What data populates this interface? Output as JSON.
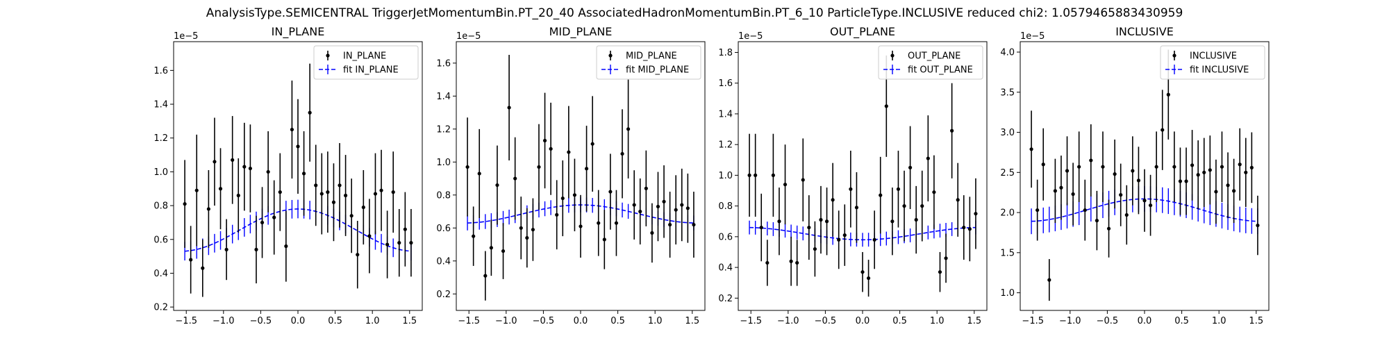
{
  "figure": {
    "suptitle": "AnalysisType.SEMICENTRAL TriggerJetMomentumBin.PT_20_40 AssociatedHadronMomentumBin.PT_6_10 ParticleType.INCLUSIVE reduced chi2: 1.0579465883430959"
  },
  "colors": {
    "data": "#000000",
    "fit": "#0000ff",
    "axes": "#000000"
  },
  "chart_data": [
    {
      "type": "scatter",
      "title": "IN_PLANE",
      "offset_label": "1e−5",
      "xlim": [
        -1.67,
        1.67
      ],
      "ylim": [
        0.18,
        1.77
      ],
      "xticks": [
        -1.5,
        -1.0,
        -0.5,
        0.0,
        0.5,
        1.0,
        1.5
      ],
      "xtick_labels": [
        "−1.5",
        "−1.0",
        "−0.5",
        "0.0",
        "0.5",
        "1.0",
        "1.5"
      ],
      "yticks": [
        0.2,
        0.4,
        0.6,
        0.8,
        1.0,
        1.2,
        1.4,
        1.6
      ],
      "ytick_labels": [
        "0.2",
        "0.4",
        "0.6",
        "0.8",
        "1.0",
        "1.2",
        "1.4",
        "1.6"
      ],
      "legend": {
        "position": "top-right",
        "entries": [
          "IN_PLANE",
          "fit IN_PLANE"
        ]
      },
      "x": [
        -1.52,
        -1.44,
        -1.36,
        -1.28,
        -1.2,
        -1.12,
        -1.04,
        -0.96,
        -0.88,
        -0.8,
        -0.72,
        -0.64,
        -0.56,
        -0.48,
        -0.4,
        -0.32,
        -0.24,
        -0.16,
        -0.08,
        0.0,
        0.08,
        0.16,
        0.24,
        0.32,
        0.4,
        0.48,
        0.56,
        0.64,
        0.72,
        0.8,
        0.88,
        0.96,
        1.04,
        1.12,
        1.2,
        1.28,
        1.36,
        1.44,
        1.52
      ],
      "series": [
        {
          "name": "IN_PLANE",
          "y": [
            0.81,
            0.48,
            0.89,
            0.43,
            0.78,
            1.06,
            0.9,
            0.54,
            1.07,
            0.86,
            1.03,
            1.02,
            0.54,
            0.7,
            1.0,
            0.73,
            0.88,
            0.56,
            1.25,
            1.15,
            0.99,
            1.35,
            0.92,
            0.87,
            0.88,
            0.82,
            0.92,
            0.86,
            0.74,
            0.51,
            0.79,
            0.62,
            0.87,
            0.89,
            0.57,
            0.88,
            0.58,
            0.66,
            0.58
          ],
          "yerr": [
            0.26,
            0.2,
            0.33,
            0.17,
            0.23,
            0.26,
            0.24,
            0.18,
            0.26,
            0.22,
            0.26,
            0.26,
            0.2,
            0.21,
            0.24,
            0.22,
            0.23,
            0.21,
            0.29,
            0.28,
            0.25,
            0.29,
            0.24,
            0.24,
            0.24,
            0.23,
            0.25,
            0.24,
            0.22,
            0.2,
            0.22,
            0.22,
            0.24,
            0.24,
            0.2,
            0.24,
            0.2,
            0.22,
            0.2
          ]
        },
        {
          "name": "fit IN_PLANE",
          "base": 0.655,
          "amp": 0.125,
          "harmonic": 2,
          "yerr": [
            0.055,
            0.055,
            0.055,
            0.055,
            0.055,
            0.055,
            0.055,
            0.055,
            0.055,
            0.055,
            0.055,
            0.055,
            0.055,
            0.055,
            0.055,
            0.055,
            0.055,
            0.055,
            0.055,
            0.055,
            0.055,
            0.055,
            0.055,
            0.055,
            0.055,
            0.055,
            0.055,
            0.055,
            0.055,
            0.055,
            0.055,
            0.055,
            0.055,
            0.055,
            0.055,
            0.055,
            0.055,
            0.055,
            0.055
          ]
        }
      ]
    },
    {
      "type": "scatter",
      "title": "MID_PLANE",
      "offset_label": "1e−5",
      "xlim": [
        -1.67,
        1.67
      ],
      "ylim": [
        0.1,
        1.73
      ],
      "xticks": [
        -1.5,
        -1.0,
        -0.5,
        0.0,
        0.5,
        1.0,
        1.5
      ],
      "xtick_labels": [
        "−1.5",
        "−1.0",
        "−0.5",
        "0.0",
        "0.5",
        "1.0",
        "1.5"
      ],
      "yticks": [
        0.2,
        0.4,
        0.6,
        0.8,
        1.0,
        1.2,
        1.4,
        1.6
      ],
      "ytick_labels": [
        "0.2",
        "0.4",
        "0.6",
        "0.8",
        "1.0",
        "1.2",
        "1.4",
        "1.6"
      ],
      "legend": {
        "position": "top-right",
        "entries": [
          "MID_PLANE",
          "fit MID_PLANE"
        ]
      },
      "x": [
        -1.52,
        -1.44,
        -1.36,
        -1.28,
        -1.2,
        -1.12,
        -1.04,
        -0.96,
        -0.88,
        -0.8,
        -0.72,
        -0.64,
        -0.56,
        -0.48,
        -0.4,
        -0.32,
        -0.24,
        -0.16,
        -0.08,
        0.0,
        0.08,
        0.16,
        0.24,
        0.32,
        0.4,
        0.48,
        0.56,
        0.64,
        0.72,
        0.8,
        0.88,
        0.96,
        1.04,
        1.12,
        1.2,
        1.28,
        1.36,
        1.44,
        1.52
      ],
      "series": [
        {
          "name": "MID_PLANE",
          "y": [
            0.97,
            0.55,
            0.93,
            0.31,
            0.48,
            0.86,
            0.46,
            1.33,
            0.9,
            0.6,
            0.54,
            0.59,
            0.97,
            1.13,
            1.08,
            0.68,
            0.78,
            1.06,
            0.8,
            0.61,
            0.96,
            1.11,
            0.63,
            0.53,
            0.82,
            0.63,
            1.05,
            1.2,
            0.74,
            0.7,
            0.84,
            0.57,
            0.73,
            0.76,
            0.62,
            0.71,
            0.74,
            0.72,
            0.62
          ],
          "yerr": [
            0.3,
            0.18,
            0.27,
            0.15,
            0.17,
            0.24,
            0.17,
            0.32,
            0.25,
            0.19,
            0.18,
            0.19,
            0.26,
            0.29,
            0.28,
            0.21,
            0.23,
            0.28,
            0.22,
            0.19,
            0.26,
            0.29,
            0.2,
            0.18,
            0.23,
            0.2,
            0.27,
            0.3,
            0.21,
            0.2,
            0.23,
            0.18,
            0.21,
            0.22,
            0.2,
            0.21,
            0.22,
            0.21,
            0.2
          ]
        },
        {
          "name": "fit MID_PLANE",
          "base": 0.685,
          "amp": 0.055,
          "harmonic": 2,
          "yerr": [
            0.045,
            0.045,
            0.045,
            0.045,
            0.045,
            0.045,
            0.045,
            0.045,
            0.045,
            0.045,
            0.045,
            0.045,
            0.045,
            0.045,
            0.045,
            0.045,
            0.045,
            0.045,
            0.045,
            0.045,
            0.045,
            0.045,
            0.045,
            0.045,
            0.045,
            0.045,
            0.045,
            0.045,
            0.045,
            0.045,
            0.045,
            0.045,
            0.045,
            0.045,
            0.045,
            0.045,
            0.045,
            0.045,
            0.045
          ]
        }
      ]
    },
    {
      "type": "scatter",
      "title": "OUT_PLANE",
      "offset_label": "1e−5",
      "xlim": [
        -1.67,
        1.67
      ],
      "ylim": [
        0.12,
        1.87
      ],
      "xticks": [
        -1.5,
        -1.0,
        -0.5,
        0.0,
        0.5,
        1.0,
        1.5
      ],
      "xtick_labels": [
        "−1.5",
        "−1.0",
        "−0.5",
        "0.0",
        "0.5",
        "1.0",
        "1.5"
      ],
      "yticks": [
        0.2,
        0.4,
        0.6,
        0.8,
        1.0,
        1.2,
        1.4,
        1.6,
        1.8
      ],
      "ytick_labels": [
        "0.2",
        "0.4",
        "0.6",
        "0.8",
        "1.0",
        "1.2",
        "1.4",
        "1.6",
        "1.8"
      ],
      "legend": {
        "position": "top-right",
        "entries": [
          "OUT_PLANE",
          "fit OUT_PLANE"
        ]
      },
      "x": [
        -1.52,
        -1.44,
        -1.36,
        -1.28,
        -1.2,
        -1.12,
        -1.04,
        -0.96,
        -0.88,
        -0.8,
        -0.72,
        -0.64,
        -0.56,
        -0.48,
        -0.4,
        -0.32,
        -0.24,
        -0.16,
        -0.08,
        0.0,
        0.08,
        0.16,
        0.24,
        0.32,
        0.4,
        0.48,
        0.56,
        0.64,
        0.72,
        0.8,
        0.88,
        0.96,
        1.04,
        1.12,
        1.2,
        1.28,
        1.36,
        1.44,
        1.52
      ],
      "series": [
        {
          "name": "OUT_PLANE",
          "y": [
            1.0,
            1.0,
            0.66,
            0.43,
            1.0,
            0.7,
            0.94,
            0.44,
            0.43,
            0.97,
            0.66,
            0.52,
            0.71,
            0.7,
            0.84,
            0.58,
            0.61,
            0.91,
            0.79,
            0.37,
            0.33,
            0.58,
            0.87,
            1.45,
            0.7,
            0.91,
            0.8,
            1.05,
            0.71,
            0.8,
            1.11,
            0.89,
            0.37,
            0.46,
            1.29,
            0.84,
            0.66,
            0.65,
            0.75
          ],
          "yerr": [
            0.27,
            0.27,
            0.22,
            0.15,
            0.27,
            0.22,
            0.26,
            0.16,
            0.15,
            0.27,
            0.21,
            0.18,
            0.22,
            0.22,
            0.24,
            0.19,
            0.2,
            0.25,
            0.23,
            0.13,
            0.12,
            0.19,
            0.25,
            0.33,
            0.22,
            0.25,
            0.23,
            0.27,
            0.22,
            0.23,
            0.28,
            0.24,
            0.13,
            0.16,
            0.31,
            0.24,
            0.21,
            0.21,
            0.23
          ]
        },
        {
          "name": "fit OUT_PLANE",
          "base": 0.62,
          "amp": -0.04,
          "harmonic": 2,
          "yerr": [
            0.045,
            0.045,
            0.045,
            0.045,
            0.045,
            0.045,
            0.045,
            0.045,
            0.045,
            0.045,
            0.045,
            0.045,
            0.045,
            0.045,
            0.045,
            0.045,
            0.045,
            0.045,
            0.045,
            0.045,
            0.045,
            0.045,
            0.045,
            0.045,
            0.045,
            0.045,
            0.045,
            0.045,
            0.045,
            0.045,
            0.045,
            0.045,
            0.045,
            0.045,
            0.045,
            0.045,
            0.045,
            0.045,
            0.045
          ]
        }
      ]
    },
    {
      "type": "scatter",
      "title": "INCLUSIVE",
      "offset_label": "1e−5",
      "xlim": [
        -1.67,
        1.67
      ],
      "ylim": [
        0.78,
        4.13
      ],
      "xticks": [
        -1.5,
        -1.0,
        -0.5,
        0.0,
        0.5,
        1.0,
        1.5
      ],
      "xtick_labels": [
        "−1.5",
        "−1.0",
        "−0.5",
        "0.0",
        "0.5",
        "1.0",
        "1.5"
      ],
      "yticks": [
        1.0,
        1.5,
        2.0,
        2.5,
        3.0,
        3.5,
        4.0
      ],
      "ytick_labels": [
        "1.0",
        "1.5",
        "2.0",
        "2.5",
        "3.0",
        "3.5",
        "4.0"
      ],
      "legend": {
        "position": "top-right",
        "entries": [
          "INCLUSIVE",
          "fit INCLUSIVE"
        ]
      },
      "x": [
        -1.52,
        -1.44,
        -1.36,
        -1.28,
        -1.2,
        -1.12,
        -1.04,
        -0.96,
        -0.88,
        -0.8,
        -0.72,
        -0.64,
        -0.56,
        -0.48,
        -0.4,
        -0.32,
        -0.24,
        -0.16,
        -0.08,
        0.0,
        0.08,
        0.16,
        0.24,
        0.32,
        0.4,
        0.48,
        0.56,
        0.64,
        0.72,
        0.8,
        0.88,
        0.96,
        1.04,
        1.12,
        1.2,
        1.28,
        1.36,
        1.44,
        1.52
      ],
      "series": [
        {
          "name": "INCLUSIVE",
          "y": [
            2.79,
            2.03,
            2.6,
            1.16,
            2.27,
            2.31,
            2.52,
            2.23,
            2.57,
            2.03,
            2.65,
            1.9,
            2.57,
            1.8,
            2.48,
            2.22,
            1.97,
            2.52,
            2.4,
            2.15,
            2.09,
            2.57,
            3.03,
            3.47,
            2.57,
            2.39,
            2.39,
            2.59,
            2.47,
            2.5,
            2.53,
            2.26,
            2.57,
            2.34,
            2.27,
            2.6,
            2.5,
            2.56,
            1.84
          ],
          "yerr": [
            0.48,
            0.38,
            0.45,
            0.26,
            0.4,
            0.4,
            0.43,
            0.39,
            0.44,
            0.38,
            0.45,
            0.37,
            0.44,
            0.36,
            0.43,
            0.39,
            0.37,
            0.43,
            0.42,
            0.39,
            0.38,
            0.44,
            0.5,
            0.56,
            0.44,
            0.42,
            0.42,
            0.44,
            0.43,
            0.43,
            0.43,
            0.4,
            0.44,
            0.41,
            0.4,
            0.45,
            0.43,
            0.44,
            0.37
          ]
        },
        {
          "name": "fit INCLUSIVE",
          "base": 2.03,
          "amp": 0.14,
          "harmonic": 2,
          "yerr": [
            0.16,
            0.16,
            0.16,
            0.16,
            0.16,
            0.16,
            0.16,
            0.16,
            0.16,
            0.16,
            0.16,
            0.16,
            0.16,
            0.16,
            0.16,
            0.16,
            0.16,
            0.16,
            0.16,
            0.16,
            0.16,
            0.16,
            0.16,
            0.16,
            0.16,
            0.16,
            0.16,
            0.16,
            0.16,
            0.16,
            0.16,
            0.16,
            0.16,
            0.16,
            0.16,
            0.16,
            0.16,
            0.16,
            0.16
          ]
        }
      ]
    }
  ]
}
